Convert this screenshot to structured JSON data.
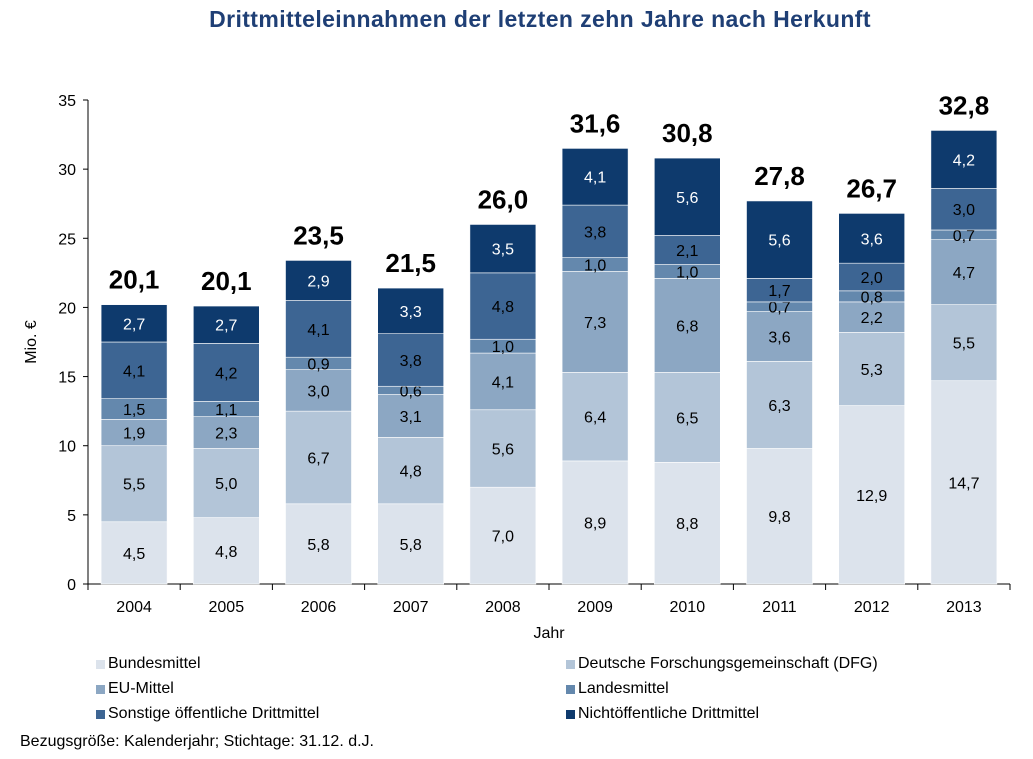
{
  "chart_data": {
    "type": "bar",
    "stacked": true,
    "title": "Drittmitteleinnahmen der letzten zehn Jahre nach Herkunft",
    "xlabel": "Jahr",
    "ylabel": "Mio. €",
    "ylim": [
      0,
      35
    ],
    "yticks": [
      "0",
      "5",
      "10",
      "15",
      "20",
      "25",
      "30",
      "35"
    ],
    "categories": [
      "2004",
      "2005",
      "2006",
      "2007",
      "2008",
      "2009",
      "2010",
      "2011",
      "2012",
      "2013"
    ],
    "totals": [
      "20,1",
      "20,1",
      "23,5",
      "21,5",
      "26,0",
      "31,6",
      "30,8",
      "27,8",
      "26,7",
      "32,8"
    ],
    "series": [
      {
        "name": "Bundesmittel",
        "color": "#dce3ec",
        "label_color": "#000000",
        "values": [
          4.5,
          4.8,
          5.8,
          5.8,
          7.0,
          8.9,
          8.8,
          9.8,
          12.9,
          14.7
        ],
        "labels": [
          "4,5",
          "4,8",
          "5,8",
          "5,8",
          "7,0",
          "8,9",
          "8,8",
          "9,8",
          "12,9",
          "14,7"
        ]
      },
      {
        "name": "Deutsche Forschungsgemeinschaft (DFG)",
        "color": "#b3c5d8",
        "label_color": "#000000",
        "values": [
          5.5,
          5.0,
          6.7,
          4.8,
          5.6,
          6.4,
          6.5,
          6.3,
          5.3,
          5.5
        ],
        "labels": [
          "5,5",
          "5,0",
          "6,7",
          "4,8",
          "5,6",
          "6,4",
          "6,5",
          "6,3",
          "5,3",
          "5,5"
        ]
      },
      {
        "name": "EU-Mittel",
        "color": "#8ca7c3",
        "label_color": "#000000",
        "values": [
          1.9,
          2.3,
          3.0,
          3.1,
          4.1,
          7.3,
          6.8,
          3.6,
          2.2,
          4.7
        ],
        "labels": [
          "1,9",
          "2,3",
          "3,0",
          "3,1",
          "4,1",
          "7,3",
          "6,8",
          "3,6",
          "2,2",
          "4,7"
        ]
      },
      {
        "name": "Landesmittel",
        "color": "#6488ad",
        "label_color": "#000000",
        "values": [
          1.5,
          1.1,
          0.9,
          0.6,
          1.0,
          1.0,
          1.0,
          0.7,
          0.8,
          0.7
        ],
        "labels": [
          "1,5",
          "1,1",
          "0,9",
          "0,6",
          "1,0",
          "1,0",
          "1,0",
          "0,7",
          "0,8",
          "0,7"
        ]
      },
      {
        "name": "Sonstige öffentliche Drittmittel",
        "color": "#3d6593",
        "label_color": "#000000",
        "values": [
          4.1,
          4.2,
          4.1,
          3.8,
          4.8,
          3.8,
          2.1,
          1.7,
          2.0,
          3.0
        ],
        "labels": [
          "4,1",
          "4,2",
          "4,1",
          "3,8",
          "4,8",
          "3,8",
          "2,1",
          "1,7",
          "2,0",
          "3,0"
        ]
      },
      {
        "name": "Nichtöffentliche Drittmittel",
        "color": "#0e3a6d",
        "label_color": "#ffffff",
        "values": [
          2.7,
          2.7,
          2.9,
          3.3,
          3.5,
          4.1,
          5.6,
          5.6,
          3.6,
          4.2
        ],
        "labels": [
          "2,7",
          "2,7",
          "2,9",
          "3,3",
          "3,5",
          "4,1",
          "5,6",
          "5,6",
          "3,6",
          "4,2"
        ]
      }
    ],
    "legend_position": "bottom",
    "grid": false
  },
  "footnote": "Bezugsgröße: Kalenderjahr; Stichtage: 31.12. d.J."
}
